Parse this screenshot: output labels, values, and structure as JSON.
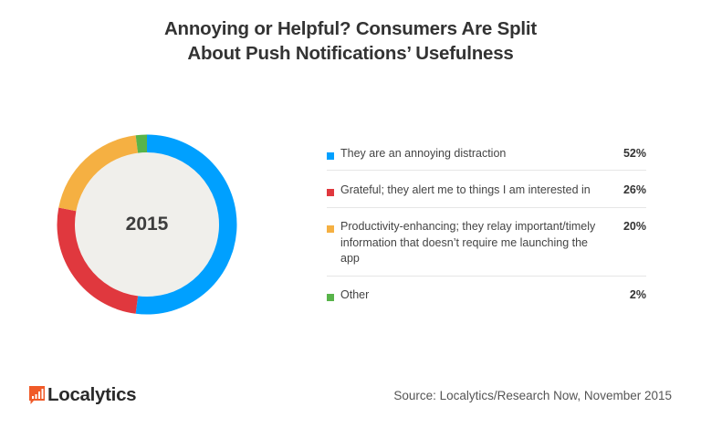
{
  "title": {
    "line1": "Annoying or Helpful? Consumers Are Split",
    "line2": "About Push Notifications’ Usefulness"
  },
  "donut": {
    "center_label": "2015"
  },
  "legend": [
    {
      "label": "They are an annoying distraction",
      "value": "52%",
      "color": "#00a0ff"
    },
    {
      "label": "Grateful; they alert me to things I am interested in",
      "value": "26%",
      "color": "#e0383e"
    },
    {
      "label": "Productivity-enhancing; they relay important/timely information that doesn’t require me launching the app",
      "value": "20%",
      "color": "#f5b042"
    },
    {
      "label": "Other",
      "value": "2%",
      "color": "#58b44a"
    }
  ],
  "footer": {
    "logo_text": "Localytics",
    "logo_color": "#f05a28",
    "source": "Source: Localytics/Research Now, November 2015"
  },
  "chart_data": {
    "type": "pie",
    "subtype": "donut",
    "title": "Annoying or Helpful? Consumers Are Split About Push Notifications’ Usefulness",
    "center_label": "2015",
    "categories": [
      "They are an annoying distraction",
      "Grateful; they alert me to things I am interested in",
      "Productivity-enhancing; they relay important/timely information that doesn’t require me launching the app",
      "Other"
    ],
    "values": [
      52,
      26,
      20,
      2
    ],
    "unit": "%",
    "colors": [
      "#00a0ff",
      "#e0383e",
      "#f5b042",
      "#58b44a"
    ],
    "legend_position": "right",
    "start_angle_deg": 0,
    "direction": "clockwise",
    "source": "Source: Localytics/Research Now, November 2015"
  }
}
